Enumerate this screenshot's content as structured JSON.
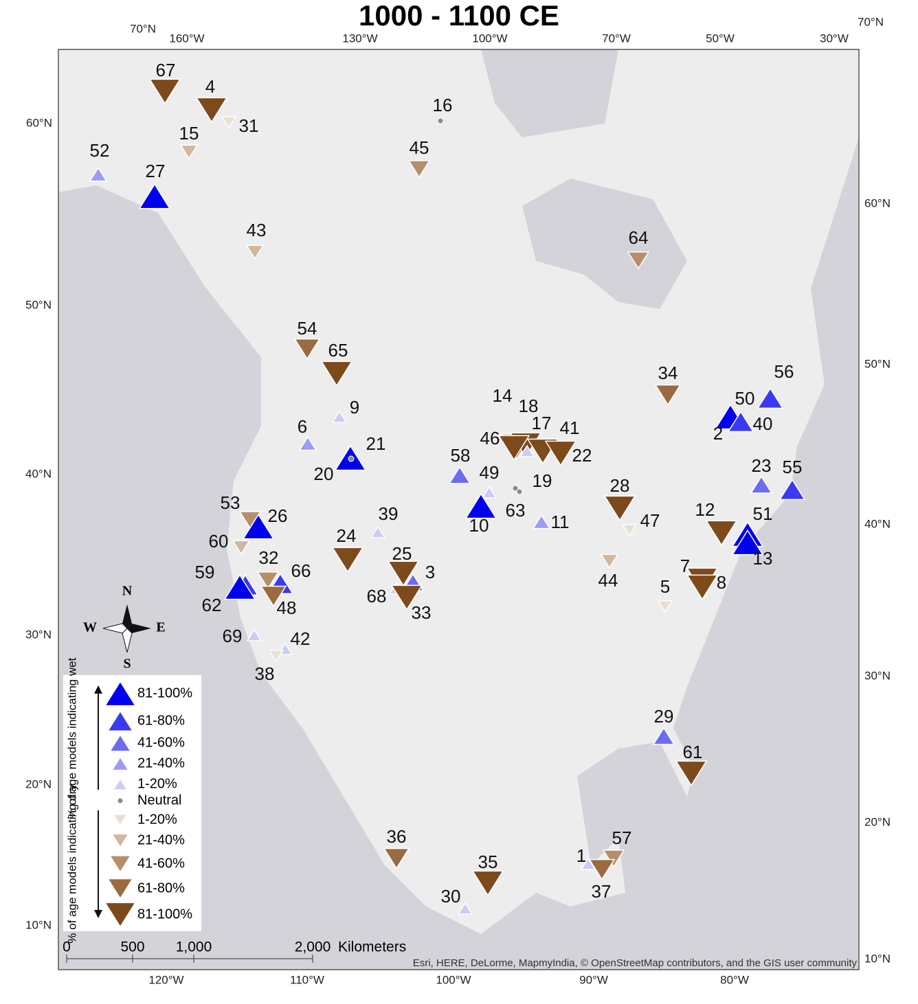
{
  "title": "1000 - 1100 CE",
  "graticule": {
    "top": [
      "70°N",
      "160°W",
      "130°W",
      "100°W",
      "70°W",
      "50°W",
      "30°W",
      "70°N"
    ],
    "left": [
      "60°N",
      "50°N",
      "40°N",
      "30°N",
      "20°N",
      "10°N"
    ],
    "right": [
      "60°N",
      "50°N",
      "40°N",
      "30°N",
      "20°N",
      "10°N"
    ],
    "bottom": [
      "120°W",
      "110°W",
      "100°W",
      "90°W",
      "80°W"
    ]
  },
  "compass": {
    "n": "N",
    "s": "S",
    "e": "E",
    "w": "W"
  },
  "scale": {
    "ticks": [
      "0",
      "500",
      "1,000",
      "2,000"
    ],
    "unit": "Kilometers"
  },
  "attribution": "Esri, HERE, DeLorme, MapmyIndia, © OpenStreetMap contributors, and the GIS user community",
  "legend": {
    "wet_title": "% of age models indicating wet",
    "dry_title": "% of age models indicating dry",
    "items": [
      {
        "label": "81-100%",
        "color": "#0000f0"
      },
      {
        "label": "61-80%",
        "color": "#3a3af2"
      },
      {
        "label": "41-60%",
        "color": "#6c6cf2"
      },
      {
        "label": "21-40%",
        "color": "#9c9cf4"
      },
      {
        "label": "1-20%",
        "color": "#ccccf8"
      },
      {
        "label": "Neutral",
        "color": "#8a8a8a"
      },
      {
        "label": "1-20%",
        "color": "#eadfd3"
      },
      {
        "label": "21-40%",
        "color": "#d0b79e"
      },
      {
        "label": "41-60%",
        "color": "#b48f6a"
      },
      {
        "label": "61-80%",
        "color": "#9a6b40"
      },
      {
        "label": "81-100%",
        "color": "#7d4a1c"
      }
    ]
  },
  "sites": [
    {
      "label": "67",
      "class": 10
    },
    {
      "label": "4",
      "class": 10
    },
    {
      "label": "31",
      "class": 6
    },
    {
      "label": "15",
      "class": 7
    },
    {
      "label": "52",
      "class": 3
    },
    {
      "label": "27",
      "class": 0
    },
    {
      "label": "16",
      "class": 5
    },
    {
      "label": "45",
      "class": 8
    },
    {
      "label": "43",
      "class": 7
    },
    {
      "label": "64",
      "class": 8
    },
    {
      "label": "54",
      "class": 9
    },
    {
      "label": "65",
      "class": 10
    },
    {
      "label": "9",
      "class": 4
    },
    {
      "label": "6",
      "class": 3
    },
    {
      "label": "21",
      "class": 0
    },
    {
      "label": "20",
      "class": 5
    },
    {
      "label": "34",
      "class": 9
    },
    {
      "label": "56",
      "class": 1
    },
    {
      "label": "50",
      "class": 0
    },
    {
      "label": "2",
      "class": 5
    },
    {
      "label": "40",
      "class": 1
    },
    {
      "label": "14",
      "class": 10
    },
    {
      "label": "18",
      "class": 10
    },
    {
      "label": "46",
      "class": 10
    },
    {
      "label": "17",
      "class": 4
    },
    {
      "label": "41",
      "class": 10
    },
    {
      "label": "22",
      "class": 10
    },
    {
      "label": "58",
      "class": 2
    },
    {
      "label": "49",
      "class": 4
    },
    {
      "label": "10",
      "class": 0
    },
    {
      "label": "19",
      "class": 5
    },
    {
      "label": "63",
      "class": 5
    },
    {
      "label": "11",
      "class": 3
    },
    {
      "label": "28",
      "class": 10
    },
    {
      "label": "47",
      "class": 6
    },
    {
      "label": "12",
      "class": 10
    },
    {
      "label": "51",
      "class": 0
    },
    {
      "label": "13",
      "class": 0
    },
    {
      "label": "23",
      "class": 2
    },
    {
      "label": "55",
      "class": 1
    },
    {
      "label": "53",
      "class": 8
    },
    {
      "label": "26",
      "class": 0
    },
    {
      "label": "60",
      "class": 7
    },
    {
      "label": "24",
      "class": 10
    },
    {
      "label": "39",
      "class": 4
    },
    {
      "label": "25",
      "class": 10
    },
    {
      "label": "3",
      "class": 2
    },
    {
      "label": "68",
      "class": 4
    },
    {
      "label": "33",
      "class": 10
    },
    {
      "label": "32",
      "class": 8
    },
    {
      "label": "66",
      "class": 1
    },
    {
      "label": "48",
      "class": 9
    },
    {
      "label": "59",
      "class": 1
    },
    {
      "label": "62",
      "class": 0
    },
    {
      "label": "44",
      "class": 7
    },
    {
      "label": "5",
      "class": 6
    },
    {
      "label": "7",
      "class": 10
    },
    {
      "label": "8",
      "class": 10
    },
    {
      "label": "69",
      "class": 4
    },
    {
      "label": "42",
      "class": 4
    },
    {
      "label": "38",
      "class": 6
    },
    {
      "label": "29",
      "class": 2
    },
    {
      "label": "61",
      "class": 10
    },
    {
      "label": "36",
      "class": 9
    },
    {
      "label": "35",
      "class": 10
    },
    {
      "label": "30",
      "class": 4
    },
    {
      "label": "1",
      "class": 4
    },
    {
      "label": "57",
      "class": 8
    },
    {
      "label": "37",
      "class": 9
    }
  ]
}
